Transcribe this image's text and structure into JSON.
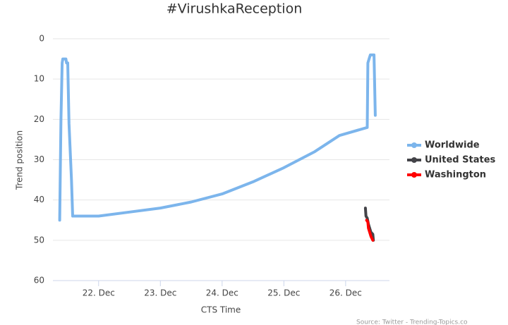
{
  "chart_data": {
    "type": "line",
    "title": "#VirushkaReception",
    "x_label": "CTS Time",
    "y_label": "Trend position",
    "source": "Source: Twitter - Trending-Topics.co",
    "xlim": [
      21.26,
      26.71
    ],
    "xticks": [
      {
        "value": 22,
        "label": "22. Dec"
      },
      {
        "value": 23,
        "label": "23. Dec"
      },
      {
        "value": 24,
        "label": "24. Dec"
      },
      {
        "value": 25,
        "label": "25. Dec"
      },
      {
        "value": 26,
        "label": "26. Dec"
      }
    ],
    "ylim": [
      0,
      60
    ],
    "yticks": [
      0,
      10,
      20,
      30,
      40,
      50,
      60
    ],
    "y_reversed": true,
    "grid": true,
    "series": [
      {
        "name": "Worldwide",
        "color": "#7cb5ec",
        "x": [
          21.37,
          21.39,
          21.41,
          21.42,
          21.47,
          21.48,
          21.5,
          21.52,
          21.56,
          21.58,
          22.0,
          22.5,
          23.0,
          23.5,
          24.0,
          24.5,
          25.0,
          25.5,
          25.9,
          26.35,
          26.36,
          26.38,
          26.4,
          26.46,
          26.48
        ],
        "values": [
          45,
          20,
          6,
          5,
          5,
          6,
          6,
          21,
          35,
          44,
          44,
          43,
          42,
          40.5,
          38.5,
          35.5,
          32,
          28,
          24,
          22,
          6,
          5,
          4,
          4,
          19
        ]
      },
      {
        "name": "United States",
        "color": "#434348",
        "x": [
          26.32,
          26.33,
          26.35,
          26.37,
          26.41,
          26.44,
          26.45
        ],
        "values": [
          42,
          44,
          44.5,
          46,
          48,
          48.5,
          50
        ]
      },
      {
        "name": "Washington",
        "color": "#ff0000",
        "x": [
          26.34,
          26.36,
          26.37,
          26.41,
          26.44
        ],
        "values": [
          45,
          45.5,
          47,
          49,
          50
        ]
      }
    ]
  }
}
